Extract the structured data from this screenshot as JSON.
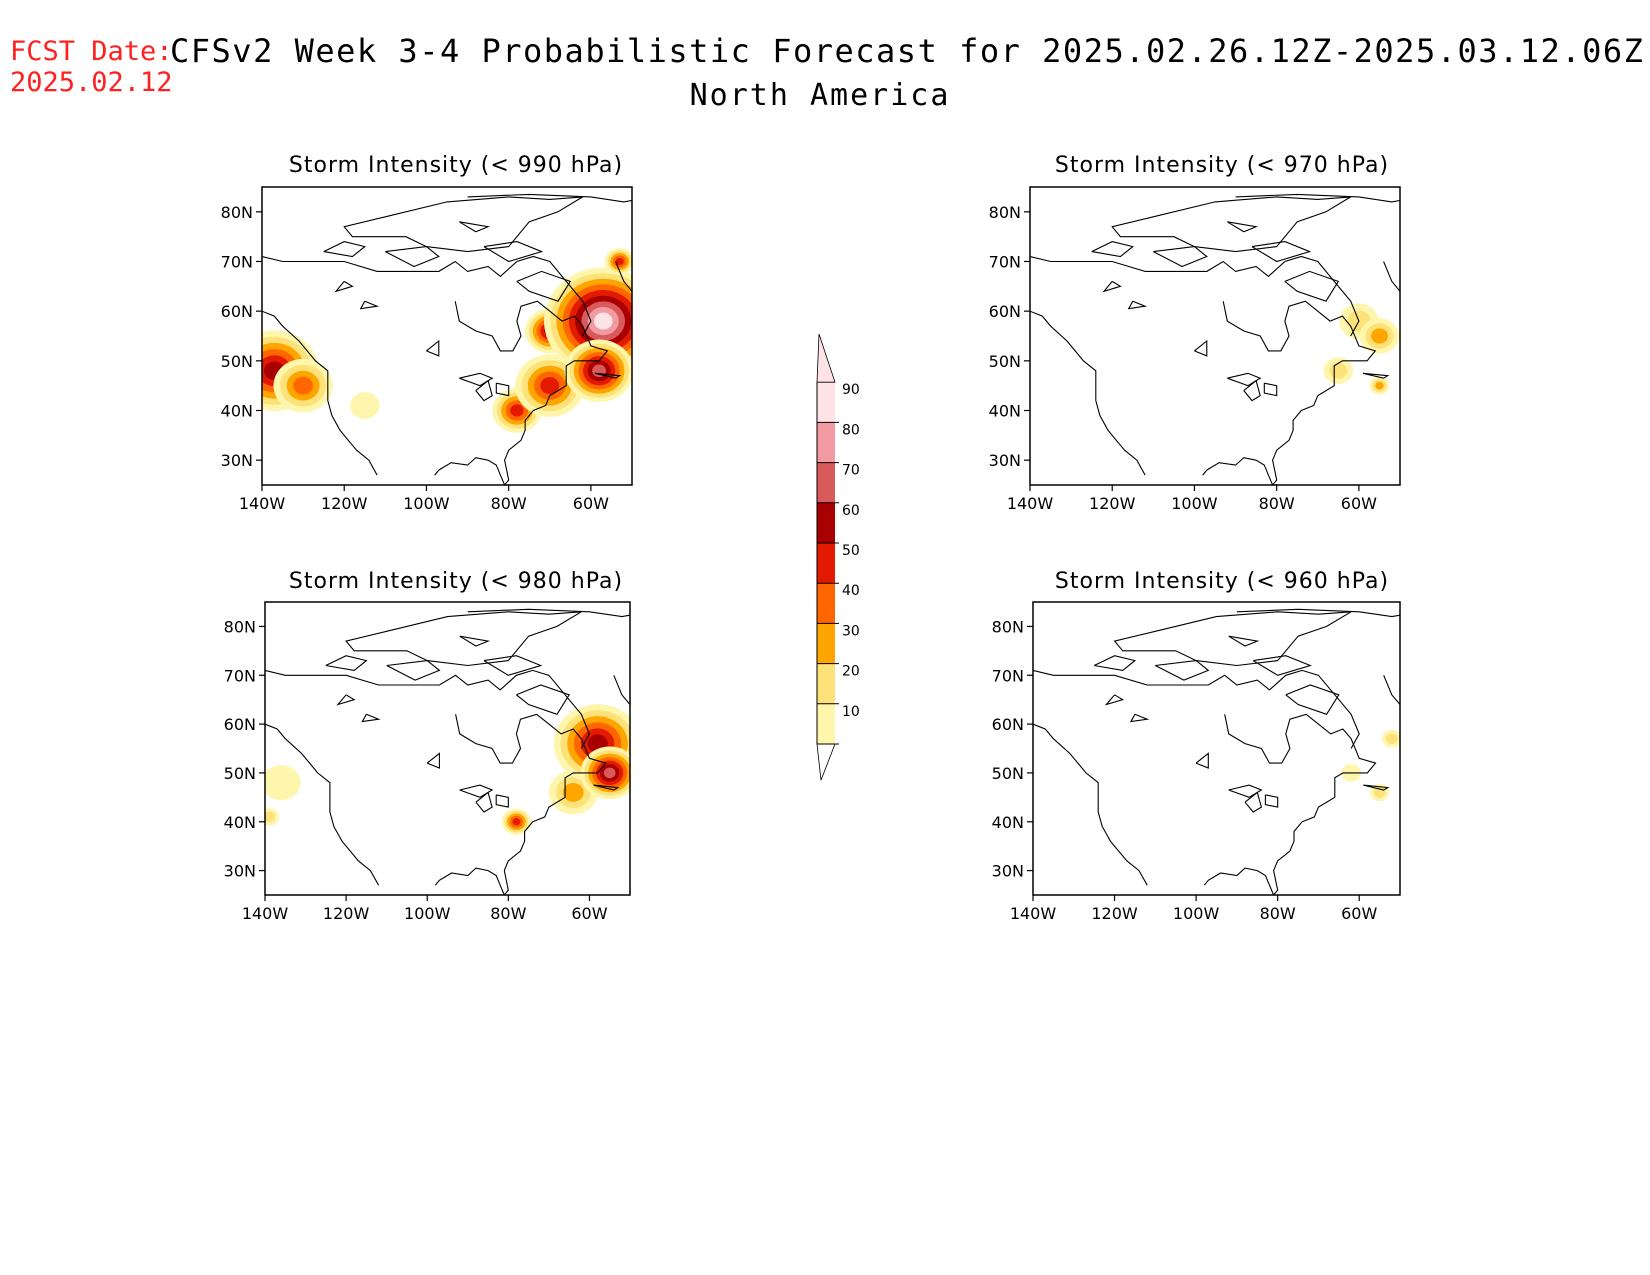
{
  "header": {
    "fcst_label": "FCST Date:",
    "fcst_date": "2025.02.12",
    "title": "CFSv2 Week 3-4 Probabilistic Forecast for 2025.02.26.12Z-2025.03.12.06Z",
    "subtitle": "North America"
  },
  "panels": [
    {
      "title": "Storm Intensity (< 990 hPa)",
      "lat_labels": [
        "80N",
        "70N",
        "60N",
        "50N",
        "40N",
        "30N"
      ],
      "lon_labels": [
        "140W",
        "120W",
        "100W",
        "80W",
        "60W"
      ],
      "features": [
        {
          "lon": -137,
          "lat": 48,
          "r": 9,
          "level": 60
        },
        {
          "lon": -130,
          "lat": 45,
          "r": 6,
          "level": 40
        },
        {
          "lon": -115,
          "lat": 41,
          "r": 3,
          "level": 10
        },
        {
          "lon": -78,
          "lat": 40,
          "r": 5,
          "level": 50
        },
        {
          "lon": -70,
          "lat": 45,
          "r": 7,
          "level": 50
        },
        {
          "lon": -70,
          "lat": 56,
          "r": 5,
          "level": 60
        },
        {
          "lon": -57,
          "lat": 58,
          "r": 12,
          "level": 90
        },
        {
          "lon": -58,
          "lat": 48,
          "r": 7,
          "level": 70
        },
        {
          "lon": -53,
          "lat": 70,
          "r": 3,
          "level": 50
        }
      ]
    },
    {
      "title": "Storm Intensity (< 970 hPa)",
      "lat_labels": [
        "80N",
        "70N",
        "60N",
        "50N",
        "40N",
        "30N"
      ],
      "lon_labels": [
        "140W",
        "120W",
        "100W",
        "80W",
        "60W"
      ],
      "features": [
        {
          "lon": -60,
          "lat": 58,
          "r": 4,
          "level": 20
        },
        {
          "lon": -55,
          "lat": 55,
          "r": 4,
          "level": 30
        },
        {
          "lon": -65,
          "lat": 48,
          "r": 3,
          "level": 20
        },
        {
          "lon": -55,
          "lat": 45,
          "r": 2,
          "level": 30
        }
      ]
    },
    {
      "title": "Storm Intensity (< 980 hPa)",
      "lat_labels": [
        "80N",
        "70N",
        "60N",
        "50N",
        "40N",
        "30N"
      ],
      "lon_labels": [
        "140W",
        "120W",
        "100W",
        "80W",
        "60W"
      ],
      "features": [
        {
          "lon": -136,
          "lat": 48,
          "r": 4,
          "level": 10
        },
        {
          "lon": -139,
          "lat": 41,
          "r": 2,
          "level": 20
        },
        {
          "lon": -78,
          "lat": 40,
          "r": 3,
          "level": 50
        },
        {
          "lon": -64,
          "lat": 46,
          "r": 5,
          "level": 30
        },
        {
          "lon": -58,
          "lat": 56,
          "r": 9,
          "level": 60
        },
        {
          "lon": -55,
          "lat": 50,
          "r": 6,
          "level": 70
        }
      ]
    },
    {
      "title": "Storm Intensity (< 960 hPa)",
      "lat_labels": [
        "80N",
        "70N",
        "60N",
        "50N",
        "40N",
        "30N"
      ],
      "lon_labels": [
        "140W",
        "120W",
        "100W",
        "80W",
        "60W"
      ],
      "features": [
        {
          "lon": -52,
          "lat": 57,
          "r": 2,
          "level": 20
        },
        {
          "lon": -55,
          "lat": 46,
          "r": 2,
          "level": 20
        },
        {
          "lon": -62,
          "lat": 50,
          "r": 2,
          "level": 10
        }
      ]
    }
  ],
  "colorbar": {
    "ticks": [
      "10",
      "20",
      "30",
      "40",
      "50",
      "60",
      "70",
      "80",
      "90"
    ],
    "colors": [
      "#fff6ae",
      "#fde27a",
      "#ffa500",
      "#ff6600",
      "#e31a00",
      "#a80000",
      "#d85a5a",
      "#f29aa2",
      "#fde2e6"
    ]
  }
}
